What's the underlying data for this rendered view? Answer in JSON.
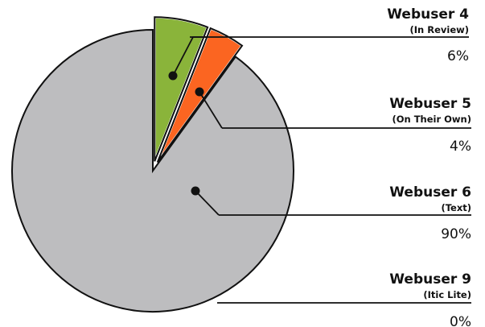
{
  "chart_data": {
    "type": "pie",
    "title": "",
    "colors": [
      "#8ab43a",
      "#fb6521",
      "#bdbdbf",
      "#bdbdbf"
    ],
    "slices": [
      {
        "name": "Webuser 4",
        "note": "(In Review)",
        "value": 6,
        "label": "6%",
        "exploded": true
      },
      {
        "name": "Webuser 5",
        "note": "(On Their Own)",
        "value": 4,
        "label": "4%",
        "exploded": true
      },
      {
        "name": "Webuser 6",
        "note": "(Text)",
        "value": 90,
        "label": "90%",
        "exploded": false
      },
      {
        "name": "Webuser 9",
        "note": "(Itic Lite)",
        "value": 0,
        "label": "0%",
        "exploded": false
      }
    ]
  }
}
